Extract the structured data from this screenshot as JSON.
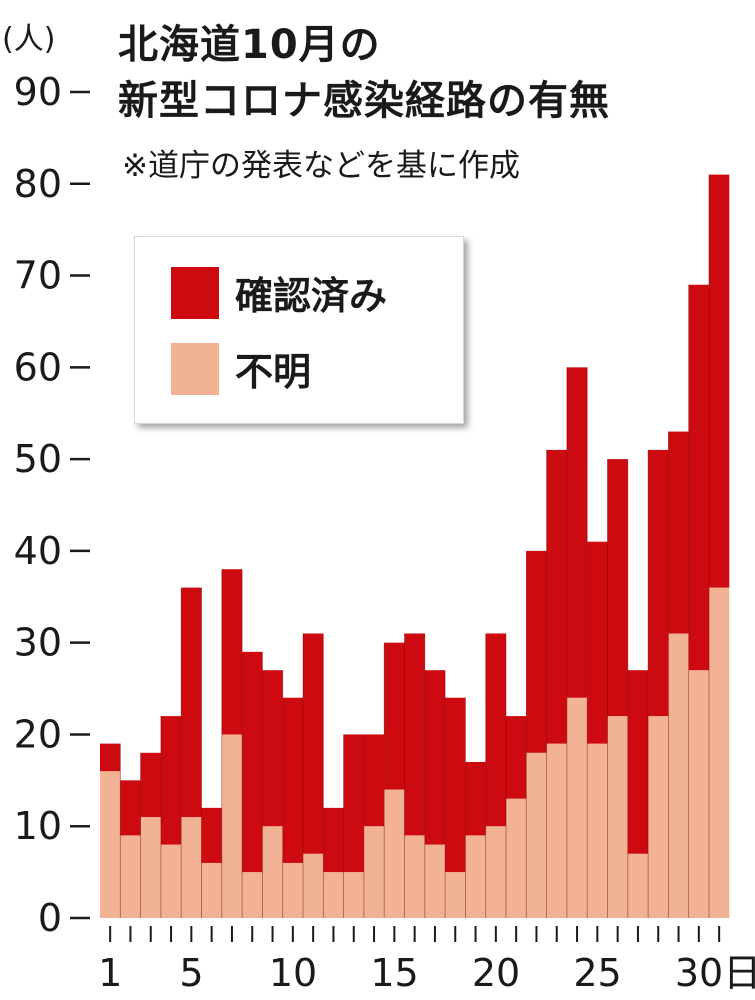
{
  "title_lines": [
    "北海道10月の",
    "新型コロナ感染経路の有無"
  ],
  "subtitle": "※道庁の発表などを基に作成",
  "y_unit": "(人)",
  "x_suffix": "日",
  "colors": {
    "confirmed": "#cc0a10",
    "unknown": "#f2b394"
  },
  "legend": [
    {
      "label": "確認済み",
      "color": "#cc0a10"
    },
    {
      "label": "不明",
      "color": "#f2b394"
    }
  ],
  "chart_data": {
    "type": "bar",
    "stacked": true,
    "categories": [
      1,
      2,
      3,
      4,
      5,
      6,
      7,
      8,
      9,
      10,
      11,
      12,
      13,
      14,
      15,
      16,
      17,
      18,
      19,
      20,
      21,
      22,
      23,
      24,
      25,
      26,
      27,
      28,
      29,
      30,
      31
    ],
    "x_tick_labels": [
      "1",
      "5",
      "10",
      "15",
      "20",
      "25",
      "30日"
    ],
    "x_tick_positions": [
      1,
      5,
      10,
      15,
      20,
      25,
      30
    ],
    "series": [
      {
        "name": "不明",
        "values": [
          16,
          9,
          11,
          8,
          11,
          6,
          20,
          5,
          10,
          6,
          7,
          5,
          5,
          10,
          14,
          9,
          8,
          5,
          9,
          10,
          13,
          18,
          19,
          24,
          19,
          22,
          7,
          22,
          31,
          27,
          36
        ]
      },
      {
        "name": "確認済み",
        "values": [
          3,
          6,
          7,
          14,
          25,
          6,
          18,
          24,
          17,
          18,
          24,
          7,
          15,
          10,
          16,
          22,
          19,
          19,
          8,
          21,
          9,
          22,
          32,
          36,
          22,
          28,
          20,
          29,
          22,
          42,
          45
        ]
      }
    ],
    "ylim": [
      0,
      90
    ],
    "y_ticks": [
      0,
      10,
      20,
      30,
      40,
      50,
      60,
      70,
      80,
      90
    ],
    "grid": false,
    "legend_position": "top-left"
  }
}
